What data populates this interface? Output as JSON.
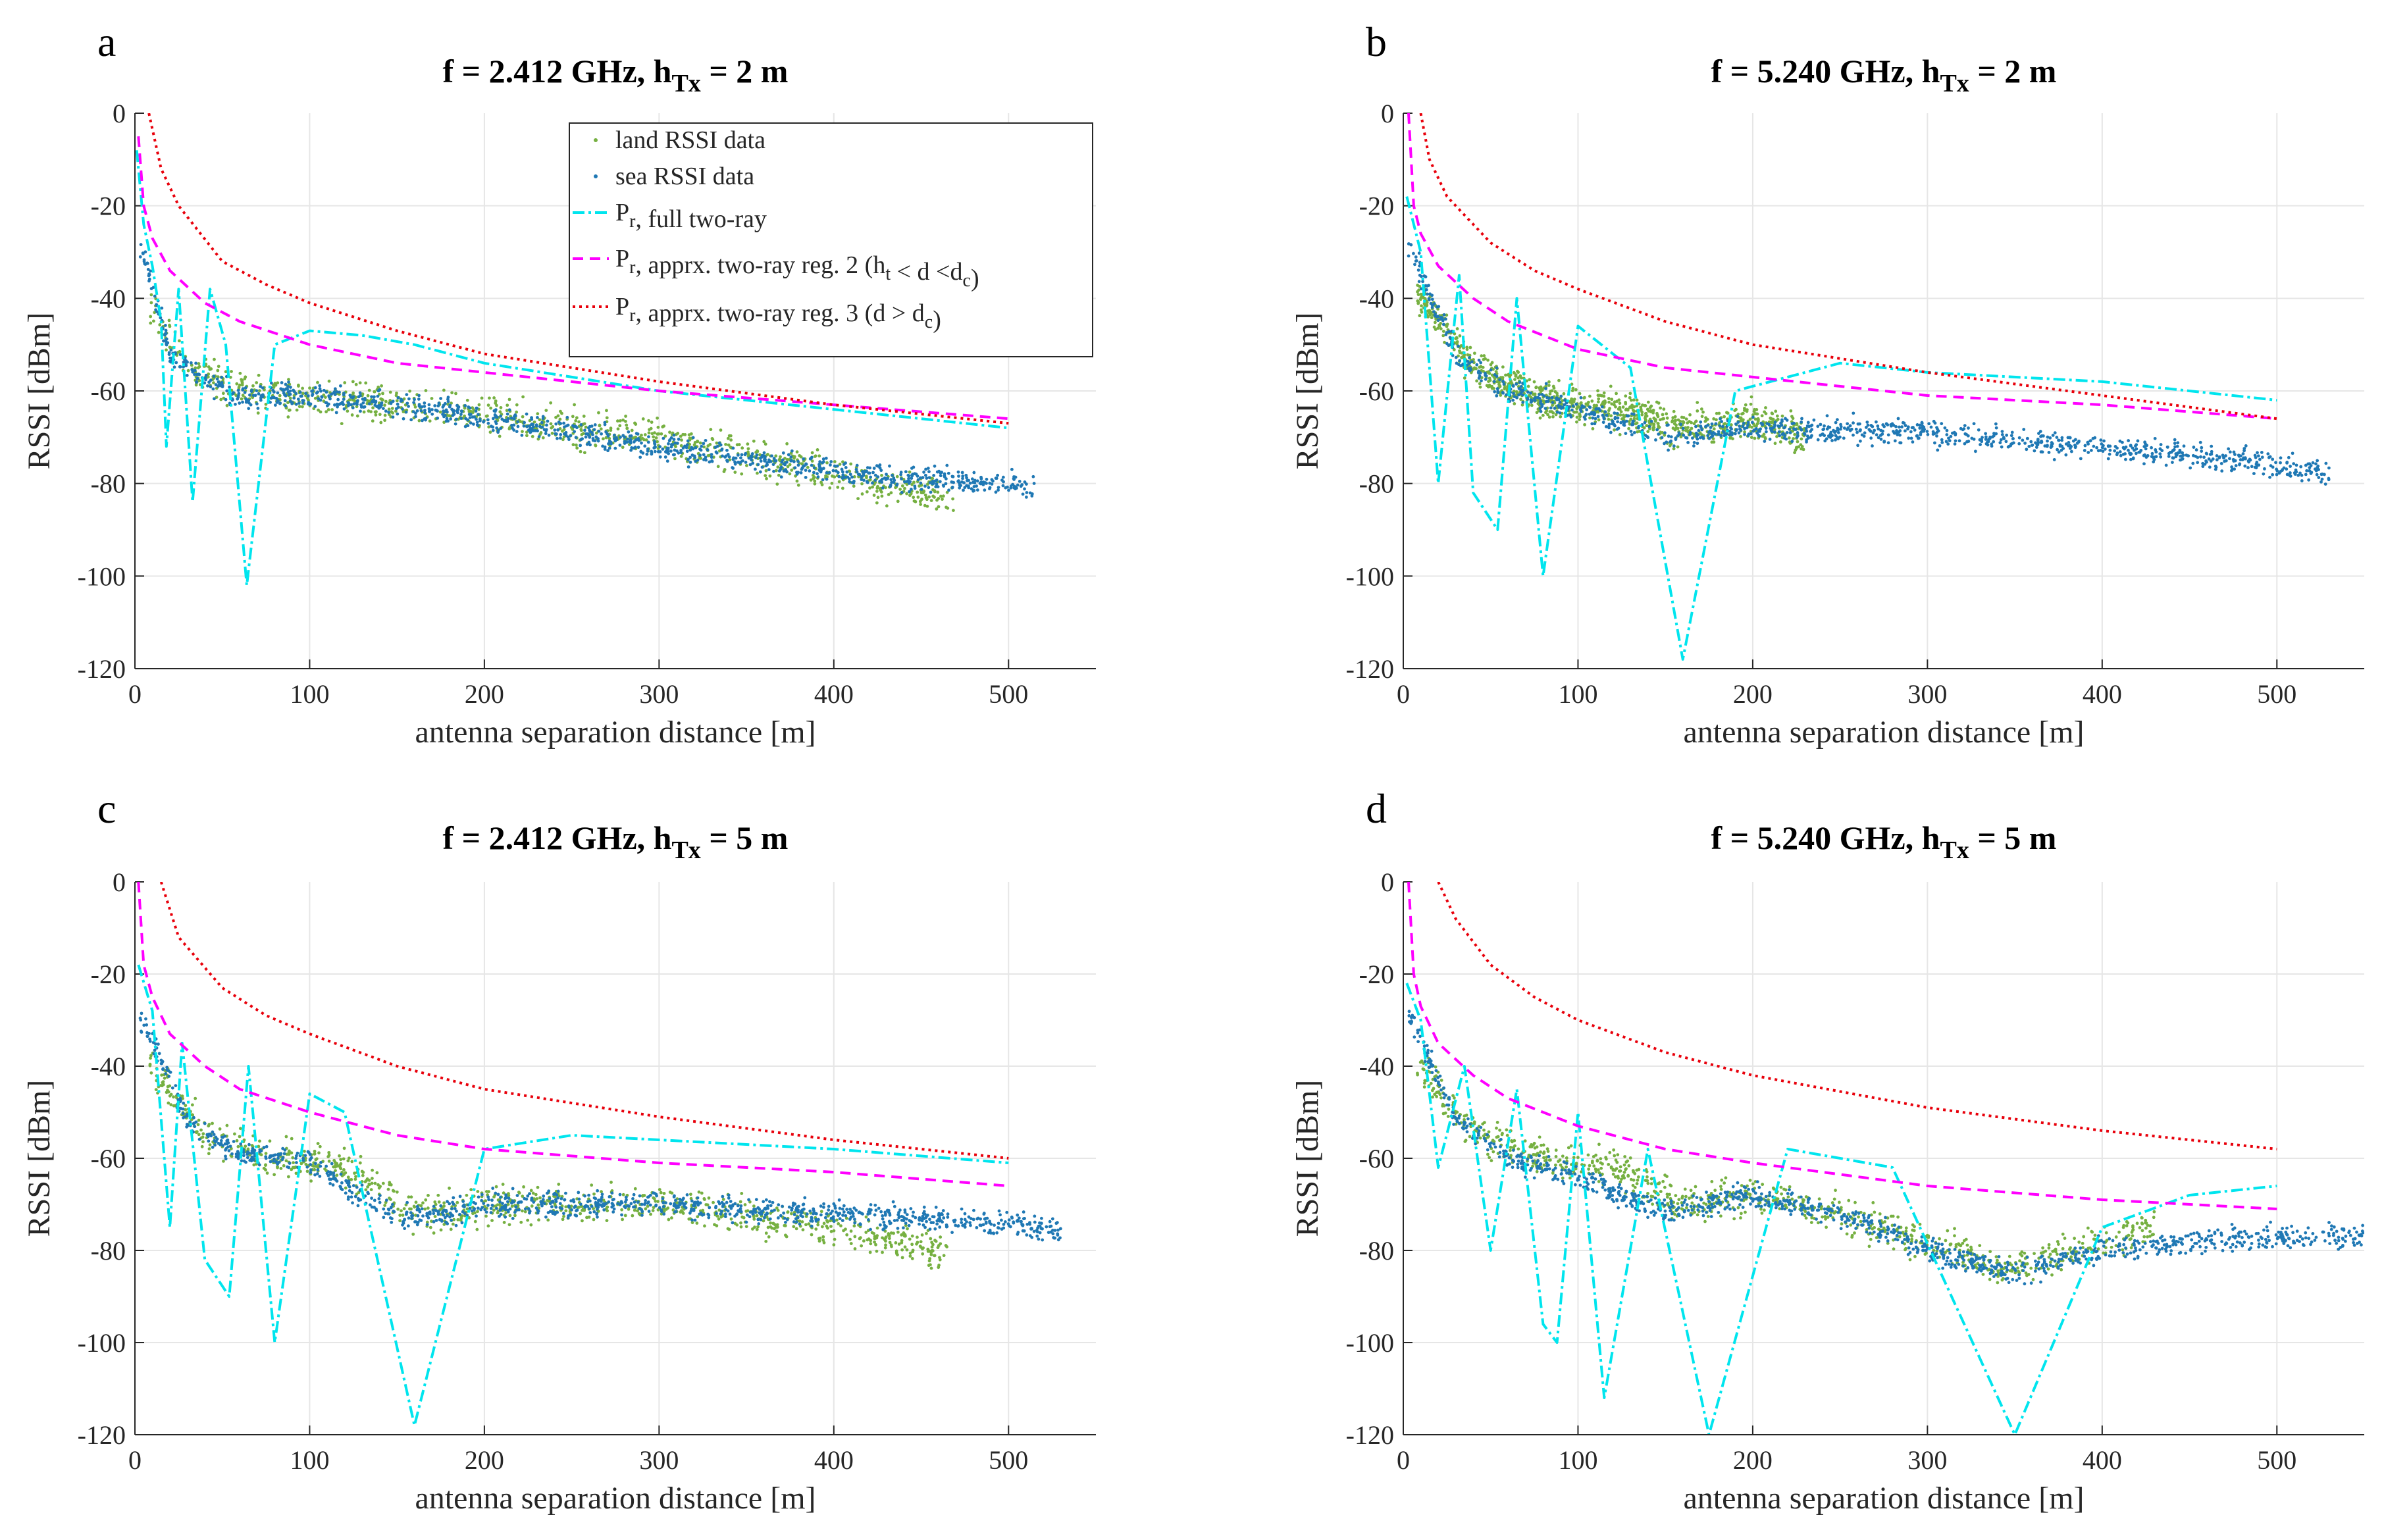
{
  "figure": {
    "colors": {
      "land": "#76b041",
      "sea": "#1f78b4",
      "full_two_ray": "#00e5ee",
      "reg2": "#ff00ff",
      "reg3": "#e8000b",
      "grid": "#e6e6e6",
      "axis": "#262626"
    },
    "legend": [
      {
        "key": "land",
        "label": "land RSSI data",
        "style": "dot"
      },
      {
        "key": "sea",
        "label": "sea RSSI data",
        "style": "dot"
      },
      {
        "key": "full_two_ray",
        "label_main": "P",
        "label_sub": "r",
        "label_rest": ", full two-ray",
        "style": "dashdot"
      },
      {
        "key": "reg2",
        "label_main": "P",
        "label_sub": "r",
        "label_rest": ", apprx. two-ray reg. 2 (h",
        "label_sub2": "t",
        "label_rest2": " < d <d",
        "label_sub3": "c",
        "label_rest3": ")",
        "style": "dashed"
      },
      {
        "key": "reg3",
        "label_main": "P",
        "label_sub": "r",
        "label_rest": ", apprx. two-ray reg. 3 (d > d",
        "label_sub2": "c",
        "label_rest2": ")",
        "style": "dotted"
      }
    ]
  },
  "chart_data": [
    {
      "panel": "a",
      "type": "scatter",
      "title_main": "f = 2.412 GHz, h",
      "title_sub": "Tx",
      "title_rest": " = 2 m",
      "freq_ghz": 2.412,
      "htx_m": 2,
      "xlabel": "antenna separation distance [m]",
      "ylabel": "RSSI [dBm]",
      "xlim": [
        0,
        550
      ],
      "ylim": [
        -120,
        0
      ],
      "xticks": [
        0,
        100,
        200,
        300,
        400,
        500
      ],
      "yticks": [
        0,
        -20,
        -40,
        -60,
        -80,
        -100,
        -120
      ],
      "grid": true,
      "legend_position": "top-right",
      "model_series": [
        {
          "name": "full two-ray",
          "key": "full_two_ray",
          "x": [
            1,
            5,
            10,
            15,
            18,
            25,
            33,
            43,
            52,
            64,
            80,
            100,
            130,
            160,
            200,
            250,
            300,
            400,
            500
          ],
          "y": [
            -8,
            -24,
            -33,
            -45,
            -72,
            -38,
            -84,
            -38,
            -50,
            -102,
            -50,
            -47,
            -48,
            -50,
            -54,
            -57,
            -60,
            -64,
            -68
          ]
        },
        {
          "name": "apprx. two-ray reg. 2",
          "key": "reg2",
          "x": [
            2,
            5,
            10,
            20,
            40,
            60,
            100,
            150,
            200,
            300,
            400,
            500
          ],
          "y": [
            -5,
            -20,
            -27,
            -34,
            -41,
            -45,
            -50,
            -54,
            -56,
            -60,
            -63,
            -66
          ]
        },
        {
          "name": "apprx. two-ray reg. 3",
          "key": "reg3",
          "x": [
            8,
            15,
            25,
            50,
            75,
            100,
            150,
            200,
            300,
            400,
            500
          ],
          "y": [
            0,
            -12,
            -20,
            -32,
            -37,
            -41,
            -47,
            -52,
            -58,
            -63,
            -67
          ]
        }
      ],
      "land_trend": {
        "x": [
          10,
          30,
          60,
          100,
          150,
          200,
          250,
          300,
          350,
          400,
          450,
          470
        ],
        "y": [
          -42,
          -55,
          -60,
          -62,
          -63,
          -65,
          -68,
          -70,
          -74,
          -78,
          -82,
          -84
        ]
      },
      "sea_trend": {
        "x": [
          5,
          20,
          40,
          60,
          100,
          150,
          200,
          250,
          300,
          350,
          400,
          450,
          500,
          515
        ],
        "y": [
          -30,
          -52,
          -58,
          -61,
          -61,
          -63,
          -66,
          -69,
          -72,
          -75,
          -77,
          -79,
          -80,
          -81
        ]
      }
    },
    {
      "panel": "b",
      "type": "scatter",
      "title_main": "f = 5.240 GHz, h",
      "title_sub": "Tx",
      "title_rest": " = 2 m",
      "freq_ghz": 5.24,
      "htx_m": 2,
      "xlabel": "antenna separation distance [m]",
      "ylabel": "RSSI [dBm]",
      "xlim": [
        0,
        550
      ],
      "ylim": [
        -120,
        0
      ],
      "xticks": [
        0,
        100,
        200,
        300,
        400,
        500
      ],
      "yticks": [
        0,
        -20,
        -40,
        -60,
        -80,
        -100,
        -120
      ],
      "grid": true,
      "model_series": [
        {
          "name": "full two-ray",
          "key": "full_two_ray",
          "x": [
            2,
            10,
            20,
            32,
            40,
            54,
            65,
            80,
            100,
            130,
            160,
            190,
            250,
            300,
            400,
            500
          ],
          "y": [
            -18,
            -30,
            -80,
            -35,
            -82,
            -90,
            -40,
            -100,
            -46,
            -55,
            -118,
            -60,
            -54,
            -56,
            -58,
            -62
          ]
        },
        {
          "name": "apprx. two-ray reg. 2",
          "key": "reg2",
          "x": [
            3,
            6,
            10,
            20,
            40,
            60,
            100,
            150,
            200,
            300,
            400,
            500
          ],
          "y": [
            0,
            -20,
            -26,
            -33,
            -40,
            -45,
            -51,
            -55,
            -57,
            -61,
            -63,
            -66
          ]
        },
        {
          "name": "apprx. two-ray reg. 3",
          "key": "reg3",
          "x": [
            10,
            15,
            25,
            50,
            75,
            100,
            150,
            200,
            300,
            400,
            500
          ],
          "y": [
            0,
            -10,
            -18,
            -28,
            -34,
            -38,
            -45,
            -50,
            -56,
            -61,
            -66
          ]
        }
      ],
      "land_trend": {
        "x": [
          10,
          40,
          80,
          120,
          160,
          200,
          230
        ],
        "y": [
          -40,
          -55,
          -62,
          -64,
          -68,
          -66,
          -70
        ]
      },
      "sea_trend": {
        "x": [
          5,
          30,
          60,
          100,
          150,
          200,
          300,
          400,
          500,
          530
        ],
        "y": [
          -30,
          -52,
          -60,
          -64,
          -70,
          -68,
          -69,
          -72,
          -76,
          -78
        ]
      }
    },
    {
      "panel": "c",
      "type": "scatter",
      "title_main": "f = 2.412 GHz, h",
      "title_sub": "Tx",
      "title_rest": " = 5 m",
      "freq_ghz": 2.412,
      "htx_m": 5,
      "xlabel": "antenna separation distance [m]",
      "ylabel": "RSSI [dBm]",
      "xlim": [
        0,
        550
      ],
      "ylim": [
        -120,
        0
      ],
      "xticks": [
        0,
        100,
        200,
        300,
        400,
        500
      ],
      "yticks": [
        0,
        -20,
        -40,
        -60,
        -80,
        -100,
        -120
      ],
      "grid": true,
      "model_series": [
        {
          "name": "full two-ray",
          "key": "full_two_ray",
          "x": [
            2,
            10,
            20,
            27,
            40,
            54,
            65,
            80,
            100,
            120,
            160,
            200,
            250,
            300,
            400,
            500
          ],
          "y": [
            -18,
            -28,
            -75,
            -35,
            -82,
            -90,
            -40,
            -100,
            -46,
            -50,
            -118,
            -58,
            -55,
            -56,
            -58,
            -61
          ]
        },
        {
          "name": "apprx. two-ray reg. 2",
          "key": "reg2",
          "x": [
            2,
            5,
            10,
            20,
            40,
            60,
            100,
            150,
            200,
            300,
            400,
            500
          ],
          "y": [
            0,
            -18,
            -25,
            -33,
            -40,
            -45,
            -50,
            -55,
            -58,
            -61,
            -63,
            -66
          ]
        },
        {
          "name": "apprx. two-ray reg. 3",
          "key": "reg3",
          "x": [
            15,
            25,
            50,
            75,
            100,
            150,
            200,
            300,
            400,
            500
          ],
          "y": [
            0,
            -12,
            -23,
            -29,
            -33,
            -40,
            -45,
            -51,
            -56,
            -60
          ]
        }
      ],
      "land_trend": {
        "x": [
          10,
          40,
          80,
          120,
          160,
          200,
          250,
          300,
          350,
          400,
          450,
          465
        ],
        "y": [
          -40,
          -55,
          -60,
          -62,
          -72,
          -70,
          -70,
          -70,
          -73,
          -75,
          -79,
          -81
        ]
      },
      "sea_trend": {
        "x": [
          5,
          30,
          60,
          100,
          150,
          200,
          250,
          300,
          350,
          400,
          450,
          500,
          530
        ],
        "y": [
          -30,
          -52,
          -59,
          -61,
          -73,
          -70,
          -70,
          -70,
          -71,
          -72,
          -73,
          -74,
          -76
        ]
      }
    },
    {
      "panel": "d",
      "type": "scatter",
      "title_main": "f = 5.240 GHz, h",
      "title_sub": "Tx",
      "title_rest": " = 5 m",
      "freq_ghz": 5.24,
      "htx_m": 5,
      "xlabel": "antenna separation distance [m]",
      "ylabel": "RSSI [dBm]",
      "xlim": [
        0,
        550
      ],
      "ylim": [
        -120,
        0
      ],
      "xticks": [
        0,
        100,
        200,
        300,
        400,
        500
      ],
      "yticks": [
        0,
        -20,
        -40,
        -60,
        -80,
        -100,
        -120
      ],
      "grid": true,
      "model_series": [
        {
          "name": "full two-ray",
          "key": "full_two_ray",
          "x": [
            2,
            10,
            20,
            35,
            50,
            65,
            80,
            88,
            100,
            115,
            140,
            175,
            220,
            280,
            350,
            400,
            450,
            500
          ],
          "y": [
            -22,
            -30,
            -62,
            -40,
            -80,
            -45,
            -96,
            -100,
            -50,
            -112,
            -58,
            -120,
            -58,
            -62,
            -120,
            -75,
            -68,
            -66
          ]
        },
        {
          "name": "apprx. two-ray reg. 2",
          "key": "reg2",
          "x": [
            3,
            6,
            10,
            20,
            40,
            60,
            100,
            150,
            200,
            300,
            400,
            500
          ],
          "y": [
            0,
            -20,
            -27,
            -35,
            -42,
            -47,
            -53,
            -58,
            -61,
            -66,
            -69,
            -71
          ]
        },
        {
          "name": "apprx. two-ray reg. 3",
          "key": "reg3",
          "x": [
            20,
            30,
            50,
            75,
            100,
            150,
            200,
            300,
            400,
            500
          ],
          "y": [
            0,
            -8,
            -18,
            -25,
            -30,
            -37,
            -42,
            -49,
            -54,
            -58
          ]
        }
      ],
      "land_trend": {
        "x": [
          10,
          40,
          80,
          120,
          160,
          200,
          250,
          300,
          350,
          400,
          430
        ],
        "y": [
          -40,
          -55,
          -60,
          -62,
          -70,
          -68,
          -72,
          -78,
          -84,
          -78,
          -75
        ]
      },
      "sea_trend": {
        "x": [
          5,
          30,
          60,
          100,
          150,
          200,
          250,
          300,
          350,
          400,
          450,
          500,
          550
        ],
        "y": [
          -30,
          -52,
          -60,
          -64,
          -72,
          -68,
          -72,
          -80,
          -85,
          -80,
          -78,
          -77,
          -77
        ]
      }
    }
  ]
}
